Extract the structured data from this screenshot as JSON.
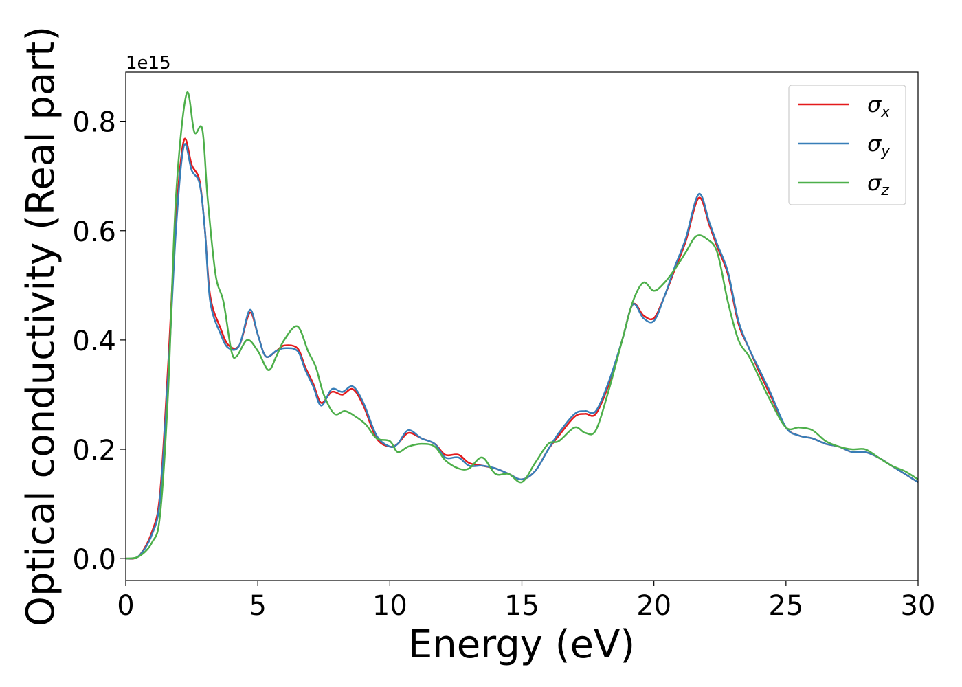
{
  "chart_data": {
    "type": "line",
    "xlabel": "Energy (eV)",
    "ylabel": "Optical conductivity (Real part)",
    "offset_label": "1e15",
    "xlim": [
      0,
      30
    ],
    "ylim": [
      -0.04,
      0.89
    ],
    "xticks": [
      0,
      5,
      10,
      15,
      20,
      25,
      30
    ],
    "yticks": [
      0.0,
      0.2,
      0.4,
      0.6,
      0.8
    ],
    "xtick_labels": [
      "0",
      "5",
      "10",
      "15",
      "20",
      "25",
      "30"
    ],
    "ytick_labels": [
      "0.0",
      "0.2",
      "0.4",
      "0.6",
      "0.8"
    ],
    "grid": false,
    "legend": {
      "position": "top-right"
    },
    "series": [
      {
        "name": "σ_x",
        "label_base": "σ",
        "label_sub": "x",
        "color": "#e41a1c",
        "points": [
          [
            0,
            0
          ],
          [
            0.5,
            0.005
          ],
          [
            1.0,
            0.05
          ],
          [
            1.3,
            0.12
          ],
          [
            1.6,
            0.35
          ],
          [
            1.9,
            0.62
          ],
          [
            2.2,
            0.765
          ],
          [
            2.5,
            0.72
          ],
          [
            2.8,
            0.69
          ],
          [
            3.0,
            0.6
          ],
          [
            3.2,
            0.48
          ],
          [
            3.6,
            0.42
          ],
          [
            3.9,
            0.39
          ],
          [
            4.3,
            0.39
          ],
          [
            4.7,
            0.45
          ],
          [
            5.0,
            0.41
          ],
          [
            5.3,
            0.37
          ],
          [
            5.7,
            0.38
          ],
          [
            6.0,
            0.39
          ],
          [
            6.5,
            0.385
          ],
          [
            6.8,
            0.35
          ],
          [
            7.1,
            0.32
          ],
          [
            7.4,
            0.285
          ],
          [
            7.8,
            0.305
          ],
          [
            8.2,
            0.3
          ],
          [
            8.6,
            0.31
          ],
          [
            9.0,
            0.28
          ],
          [
            9.5,
            0.22
          ],
          [
            10.0,
            0.205
          ],
          [
            10.3,
            0.21
          ],
          [
            10.7,
            0.23
          ],
          [
            11.2,
            0.22
          ],
          [
            11.7,
            0.21
          ],
          [
            12.1,
            0.19
          ],
          [
            12.6,
            0.19
          ],
          [
            13.0,
            0.175
          ],
          [
            13.5,
            0.17
          ],
          [
            14.0,
            0.165
          ],
          [
            14.5,
            0.155
          ],
          [
            15.0,
            0.145
          ],
          [
            15.5,
            0.16
          ],
          [
            16.0,
            0.2
          ],
          [
            16.4,
            0.225
          ],
          [
            17.0,
            0.26
          ],
          [
            17.4,
            0.265
          ],
          [
            17.8,
            0.265
          ],
          [
            18.3,
            0.32
          ],
          [
            18.8,
            0.4
          ],
          [
            19.2,
            0.465
          ],
          [
            19.6,
            0.445
          ],
          [
            20.0,
            0.44
          ],
          [
            20.4,
            0.48
          ],
          [
            20.8,
            0.53
          ],
          [
            21.2,
            0.58
          ],
          [
            21.7,
            0.66
          ],
          [
            22.1,
            0.61
          ],
          [
            22.4,
            0.57
          ],
          [
            22.8,
            0.52
          ],
          [
            23.2,
            0.43
          ],
          [
            23.6,
            0.385
          ],
          [
            24.0,
            0.34
          ],
          [
            24.4,
            0.3
          ],
          [
            25.0,
            0.24
          ],
          [
            25.5,
            0.225
          ],
          [
            26.0,
            0.22
          ],
          [
            26.5,
            0.21
          ],
          [
            27.0,
            0.205
          ],
          [
            27.5,
            0.195
          ],
          [
            28.0,
            0.195
          ],
          [
            28.5,
            0.185
          ],
          [
            29.0,
            0.17
          ],
          [
            29.5,
            0.155
          ],
          [
            30.0,
            0.14
          ]
        ]
      },
      {
        "name": "σ_y",
        "label_base": "σ",
        "label_sub": "y",
        "color": "#377eb8",
        "points": [
          [
            0,
            0
          ],
          [
            0.5,
            0.005
          ],
          [
            1.0,
            0.045
          ],
          [
            1.3,
            0.11
          ],
          [
            1.6,
            0.33
          ],
          [
            1.9,
            0.6
          ],
          [
            2.2,
            0.755
          ],
          [
            2.5,
            0.71
          ],
          [
            2.8,
            0.685
          ],
          [
            3.0,
            0.6
          ],
          [
            3.2,
            0.47
          ],
          [
            3.6,
            0.41
          ],
          [
            3.9,
            0.385
          ],
          [
            4.3,
            0.39
          ],
          [
            4.7,
            0.455
          ],
          [
            5.0,
            0.41
          ],
          [
            5.3,
            0.37
          ],
          [
            5.7,
            0.38
          ],
          [
            6.0,
            0.385
          ],
          [
            6.5,
            0.38
          ],
          [
            6.8,
            0.345
          ],
          [
            7.1,
            0.315
          ],
          [
            7.4,
            0.28
          ],
          [
            7.8,
            0.31
          ],
          [
            8.2,
            0.305
          ],
          [
            8.6,
            0.315
          ],
          [
            9.0,
            0.285
          ],
          [
            9.5,
            0.225
          ],
          [
            10.0,
            0.205
          ],
          [
            10.3,
            0.21
          ],
          [
            10.7,
            0.235
          ],
          [
            11.2,
            0.22
          ],
          [
            11.7,
            0.21
          ],
          [
            12.1,
            0.185
          ],
          [
            12.6,
            0.185
          ],
          [
            13.0,
            0.17
          ],
          [
            13.5,
            0.17
          ],
          [
            14.0,
            0.165
          ],
          [
            14.5,
            0.155
          ],
          [
            15.0,
            0.145
          ],
          [
            15.5,
            0.16
          ],
          [
            16.0,
            0.2
          ],
          [
            16.4,
            0.23
          ],
          [
            17.0,
            0.265
          ],
          [
            17.4,
            0.27
          ],
          [
            17.8,
            0.27
          ],
          [
            18.3,
            0.325
          ],
          [
            18.8,
            0.4
          ],
          [
            19.2,
            0.465
          ],
          [
            19.6,
            0.44
          ],
          [
            20.0,
            0.435
          ],
          [
            20.4,
            0.48
          ],
          [
            20.8,
            0.535
          ],
          [
            21.2,
            0.585
          ],
          [
            21.7,
            0.667
          ],
          [
            22.1,
            0.615
          ],
          [
            22.4,
            0.575
          ],
          [
            22.8,
            0.525
          ],
          [
            23.2,
            0.435
          ],
          [
            23.6,
            0.385
          ],
          [
            24.0,
            0.345
          ],
          [
            24.4,
            0.305
          ],
          [
            25.0,
            0.24
          ],
          [
            25.5,
            0.225
          ],
          [
            26.0,
            0.22
          ],
          [
            26.5,
            0.21
          ],
          [
            27.0,
            0.205
          ],
          [
            27.5,
            0.195
          ],
          [
            28.0,
            0.195
          ],
          [
            28.5,
            0.185
          ],
          [
            29.0,
            0.17
          ],
          [
            29.5,
            0.155
          ],
          [
            30.0,
            0.14
          ]
        ]
      },
      {
        "name": "σ_z",
        "label_base": "σ",
        "label_sub": "z",
        "color": "#4daf4a",
        "points": [
          [
            0,
            0
          ],
          [
            0.5,
            0.004
          ],
          [
            1.0,
            0.03
          ],
          [
            1.3,
            0.08
          ],
          [
            1.6,
            0.3
          ],
          [
            1.9,
            0.66
          ],
          [
            2.3,
            0.85
          ],
          [
            2.6,
            0.78
          ],
          [
            2.9,
            0.785
          ],
          [
            3.1,
            0.66
          ],
          [
            3.4,
            0.52
          ],
          [
            3.7,
            0.47
          ],
          [
            4.0,
            0.38
          ],
          [
            4.2,
            0.37
          ],
          [
            4.6,
            0.4
          ],
          [
            5.0,
            0.38
          ],
          [
            5.4,
            0.345
          ],
          [
            5.7,
            0.37
          ],
          [
            6.0,
            0.4
          ],
          [
            6.5,
            0.425
          ],
          [
            6.9,
            0.38
          ],
          [
            7.2,
            0.35
          ],
          [
            7.5,
            0.3
          ],
          [
            7.9,
            0.265
          ],
          [
            8.3,
            0.27
          ],
          [
            8.7,
            0.26
          ],
          [
            9.1,
            0.245
          ],
          [
            9.5,
            0.22
          ],
          [
            10.0,
            0.215
          ],
          [
            10.3,
            0.195
          ],
          [
            10.7,
            0.205
          ],
          [
            11.2,
            0.21
          ],
          [
            11.7,
            0.205
          ],
          [
            12.1,
            0.18
          ],
          [
            12.6,
            0.165
          ],
          [
            13.0,
            0.165
          ],
          [
            13.5,
            0.185
          ],
          [
            14.0,
            0.155
          ],
          [
            14.5,
            0.155
          ],
          [
            15.0,
            0.14
          ],
          [
            15.5,
            0.175
          ],
          [
            16.0,
            0.21
          ],
          [
            16.4,
            0.215
          ],
          [
            17.0,
            0.24
          ],
          [
            17.4,
            0.23
          ],
          [
            17.8,
            0.235
          ],
          [
            18.3,
            0.31
          ],
          [
            18.8,
            0.4
          ],
          [
            19.2,
            0.47
          ],
          [
            19.6,
            0.505
          ],
          [
            20.0,
            0.49
          ],
          [
            20.4,
            0.505
          ],
          [
            20.8,
            0.53
          ],
          [
            21.2,
            0.56
          ],
          [
            21.6,
            0.59
          ],
          [
            22.0,
            0.585
          ],
          [
            22.4,
            0.56
          ],
          [
            22.8,
            0.47
          ],
          [
            23.2,
            0.4
          ],
          [
            23.6,
            0.37
          ],
          [
            24.0,
            0.33
          ],
          [
            24.4,
            0.29
          ],
          [
            25.0,
            0.24
          ],
          [
            25.5,
            0.24
          ],
          [
            26.0,
            0.235
          ],
          [
            26.5,
            0.215
          ],
          [
            27.0,
            0.205
          ],
          [
            27.5,
            0.2
          ],
          [
            28.0,
            0.2
          ],
          [
            28.5,
            0.185
          ],
          [
            29.0,
            0.17
          ],
          [
            29.5,
            0.16
          ],
          [
            30.0,
            0.145
          ]
        ]
      }
    ]
  }
}
